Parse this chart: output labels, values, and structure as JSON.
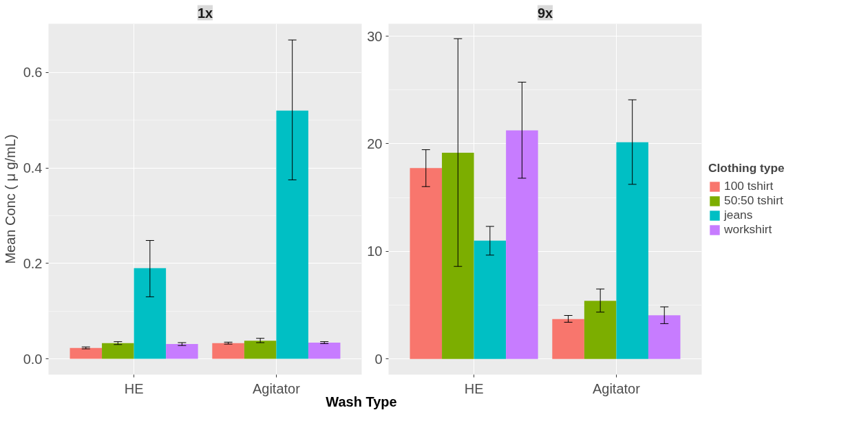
{
  "chart_data": [
    {
      "type": "bar",
      "title": "1x",
      "ylabel": "Mean Conc ( μ g/mL)",
      "xlabel": "Wash Type",
      "categories": [
        "HE",
        "Agitator"
      ],
      "ylim": [
        -0.033,
        0.702
      ],
      "yticks": [
        {
          "value": 0,
          "label": "0.0"
        },
        {
          "value": 0.2,
          "label": "0.2"
        },
        {
          "value": 0.4,
          "label": "0.4"
        },
        {
          "value": 0.6,
          "label": "0.6"
        }
      ],
      "grid": true,
      "legend": false,
      "series": [
        {
          "color": "#f8766d",
          "values": [
            0.023,
            0.033
          ],
          "errors": [
            [
              0.021,
              0.025
            ],
            [
              0.031,
              0.035
            ]
          ]
        },
        {
          "color": "#7cae00",
          "values": [
            0.033,
            0.038
          ],
          "errors": [
            [
              0.03,
              0.036
            ],
            [
              0.034,
              0.043
            ]
          ]
        },
        {
          "color": "#00bfc4",
          "values": [
            0.19,
            0.52
          ],
          "errors": [
            [
              0.13,
              0.248
            ],
            [
              0.375,
              0.668
            ]
          ]
        },
        {
          "color": "#c77cff",
          "values": [
            0.031,
            0.034
          ],
          "errors": [
            [
              0.028,
              0.034
            ],
            [
              0.032,
              0.036
            ]
          ]
        }
      ]
    },
    {
      "type": "bar",
      "title": "9x",
      "legend_title": "Clothing type",
      "categories": [
        "HE",
        "Agitator"
      ],
      "ylim": [
        -1.46,
        31.16
      ],
      "yticks": [
        0,
        10,
        20,
        30
      ],
      "grid": true,
      "legend": "right",
      "series": [
        {
          "name": "100 tshirt",
          "color": "#f8766d",
          "values": [
            17.74,
            3.7
          ],
          "errors": [
            [
              16.02,
              19.45
            ],
            [
              3.41,
              4.04
            ]
          ]
        },
        {
          "name": "50:50 tshirt",
          "color": "#7cae00",
          "values": [
            19.17,
            5.4
          ],
          "errors": [
            [
              8.6,
              29.77
            ],
            [
              4.35,
              6.5
            ]
          ]
        },
        {
          "name": "jeans",
          "color": "#00bfc4",
          "values": [
            10.99,
            20.14
          ],
          "errors": [
            [
              9.65,
              12.32
            ],
            [
              16.23,
              24.09
            ]
          ]
        },
        {
          "name": "workshirt",
          "color": "#c77cff",
          "values": [
            21.25,
            4.06
          ],
          "errors": [
            [
              16.8,
              25.73
            ],
            [
              3.28,
              4.84
            ]
          ]
        }
      ]
    }
  ]
}
